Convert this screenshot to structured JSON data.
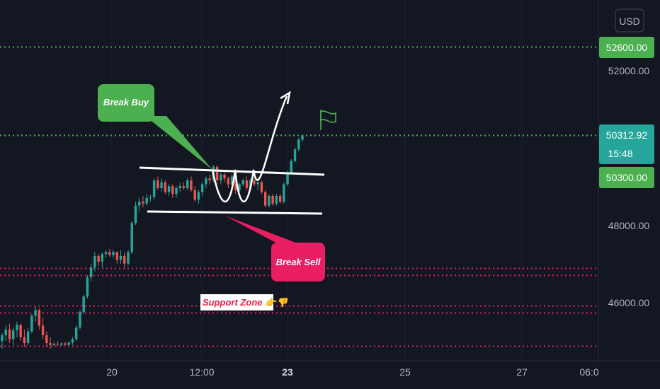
{
  "chart_data": {
    "type": "candlestick",
    "currency": "USD",
    "y_axis": {
      "ticks": [
        "52000.00",
        "48000.00",
        "46000.00"
      ]
    },
    "x_axis": {
      "ticks": [
        "20",
        "12:00",
        "23",
        "25",
        "27",
        "06:0"
      ]
    },
    "price_tags": {
      "top": "52600.00",
      "last": "50312.92",
      "countdown": "15:48",
      "level": "50300.00"
    },
    "horizontal_levels": [
      {
        "price": 52600,
        "color": "#4caf50",
        "style": "dotted"
      },
      {
        "price": 50312.92,
        "color": "#4caf50",
        "style": "dotted"
      },
      {
        "price": 46880,
        "color": "#e91e63",
        "style": "dotted"
      },
      {
        "price": 46700,
        "color": "#e91e63",
        "style": "dotted"
      },
      {
        "price": 45920,
        "color": "#e91e63",
        "style": "dotted"
      },
      {
        "price": 45730,
        "color": "#e91e63",
        "style": "dotted"
      },
      {
        "price": 44870,
        "color": "#e91e63",
        "style": "dotted"
      }
    ],
    "annotations": {
      "break_buy": "Break Buy",
      "break_sell": "Break Sell",
      "support_zone": "Support Zone 👉👎"
    },
    "candles": [
      [
        45000,
        45200,
        44800,
        45150
      ],
      [
        45150,
        45400,
        45000,
        45300
      ],
      [
        45300,
        45450,
        44950,
        45050
      ],
      [
        45050,
        45350,
        44900,
        45280
      ],
      [
        45280,
        45500,
        45100,
        45420
      ],
      [
        45420,
        45450,
        45000,
        45100
      ],
      [
        45100,
        45300,
        44850,
        44950
      ],
      [
        44950,
        45350,
        44900,
        45250
      ],
      [
        45250,
        45700,
        45200,
        45650
      ],
      [
        45650,
        45900,
        45500,
        45800
      ],
      [
        45800,
        45850,
        45300,
        45400
      ],
      [
        45400,
        45600,
        45050,
        45150
      ],
      [
        45150,
        45250,
        44850,
        44950
      ],
      [
        44950,
        45100,
        44800,
        44900
      ],
      [
        44900,
        44980,
        44850,
        44930
      ],
      [
        44930,
        45000,
        44880,
        44910
      ],
      [
        44910,
        44960,
        44870,
        44940
      ],
      [
        44940,
        44980,
        44890,
        44905
      ],
      [
        44905,
        44990,
        44880,
        44960
      ],
      [
        44960,
        45100,
        44900,
        45050
      ],
      [
        45050,
        45400,
        45000,
        45350
      ],
      [
        45350,
        45800,
        45300,
        45750
      ],
      [
        45750,
        46200,
        45700,
        46150
      ],
      [
        46150,
        46700,
        46100,
        46650
      ],
      [
        46650,
        47000,
        46550,
        46900
      ],
      [
        46900,
        47300,
        46800,
        47200
      ],
      [
        47200,
        47250,
        46950,
        47050
      ],
      [
        47050,
        47300,
        46900,
        47250
      ],
      [
        47250,
        47350,
        47150,
        47300
      ],
      [
        47300,
        47380,
        47180,
        47220
      ],
      [
        47220,
        47350,
        47150,
        47300
      ],
      [
        47300,
        47320,
        47000,
        47100
      ],
      [
        47100,
        47350,
        47000,
        47200
      ],
      [
        47200,
        47300,
        46900,
        47000
      ],
      [
        47000,
        47350,
        46950,
        47300
      ],
      [
        47300,
        48100,
        47250,
        48050
      ],
      [
        48050,
        48600,
        48000,
        48500
      ],
      [
        48500,
        48700,
        48350,
        48600
      ],
      [
        48600,
        48750,
        48450,
        48550
      ],
      [
        48550,
        48800,
        48500,
        48700
      ],
      [
        48700,
        48780,
        48600,
        48720
      ],
      [
        48720,
        49200,
        48650,
        49150
      ],
      [
        49150,
        49250,
        48900,
        48950
      ],
      [
        48950,
        49200,
        48850,
        49100
      ],
      [
        49100,
        49150,
        48800,
        48850
      ],
      [
        48850,
        49050,
        48750,
        49000
      ],
      [
        49000,
        49050,
        48700,
        48800
      ],
      [
        48800,
        49000,
        48700,
        48950
      ],
      [
        48950,
        49100,
        48850,
        49000
      ],
      [
        49000,
        49100,
        48900,
        48950
      ],
      [
        48950,
        49200,
        48900,
        49150
      ],
      [
        49150,
        49250,
        48850,
        48900
      ],
      [
        48900,
        49000,
        48600,
        48650
      ],
      [
        48650,
        48900,
        48550,
        48850
      ],
      [
        48850,
        49100,
        48750,
        49050
      ],
      [
        49050,
        49250,
        48950,
        49200
      ],
      [
        49200,
        49300,
        49050,
        49150
      ],
      [
        49150,
        49550,
        49100,
        49500
      ],
      [
        49500,
        49550,
        49050,
        49150
      ],
      [
        49150,
        49350,
        49050,
        49300
      ],
      [
        49300,
        49350,
        49100,
        49200
      ],
      [
        49200,
        49250,
        48950,
        49050
      ],
      [
        49050,
        49300,
        48950,
        49250
      ],
      [
        49250,
        49300,
        48800,
        48900
      ],
      [
        48900,
        49100,
        48850,
        49050
      ],
      [
        49050,
        49200,
        49000,
        49150
      ],
      [
        49150,
        49250,
        48900,
        48950
      ],
      [
        48950,
        49200,
        48900,
        49150
      ],
      [
        49150,
        49200,
        49000,
        49050
      ],
      [
        49050,
        49150,
        48900,
        49100
      ],
      [
        49100,
        49150,
        48800,
        48850
      ],
      [
        48850,
        48900,
        48450,
        48500
      ],
      [
        48500,
        48800,
        48450,
        48750
      ],
      [
        48750,
        48800,
        48500,
        48550
      ],
      [
        48550,
        48800,
        48500,
        48750
      ],
      [
        48750,
        48800,
        48550,
        48600
      ],
      [
        48600,
        49100,
        48550,
        49050
      ],
      [
        49050,
        49400,
        49000,
        49350
      ],
      [
        49350,
        49700,
        49300,
        49650
      ],
      [
        49650,
        50000,
        49600,
        49950
      ],
      [
        49950,
        50250,
        49900,
        50200
      ],
      [
        50200,
        50320,
        50150,
        50312.92
      ]
    ]
  }
}
